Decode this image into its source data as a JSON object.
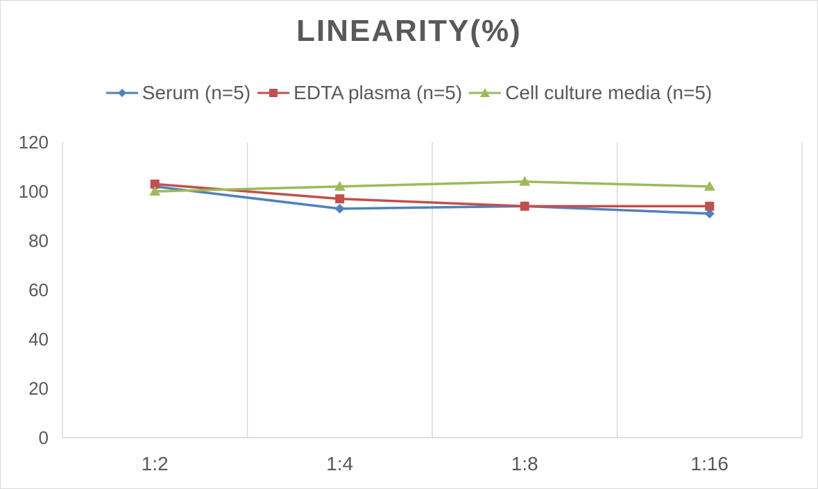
{
  "chart_data": {
    "type": "line",
    "title": "LINEARITY(%)",
    "categories": [
      "1:2",
      "1:4",
      "1:8",
      "1:16"
    ],
    "series": [
      {
        "name": "Serum (n=5)",
        "values": [
          102,
          93,
          94,
          91
        ],
        "color": "#4F81BD",
        "marker": "diamond"
      },
      {
        "name": "EDTA plasma (n=5)",
        "values": [
          103,
          97,
          94,
          94
        ],
        "color": "#C0504D",
        "marker": "square"
      },
      {
        "name": "Cell culture media (n=5)",
        "values": [
          100,
          102,
          104,
          102
        ],
        "color": "#9BBB59",
        "marker": "triangle"
      }
    ],
    "xlabel": "",
    "ylabel": "",
    "ylim": [
      0,
      120
    ],
    "yticks": [
      "0",
      "20",
      "40",
      "60",
      "80",
      "100",
      "120"
    ],
    "legend_position": "top",
    "grid": "vertical",
    "gridline_color": "#d9d9d9"
  }
}
